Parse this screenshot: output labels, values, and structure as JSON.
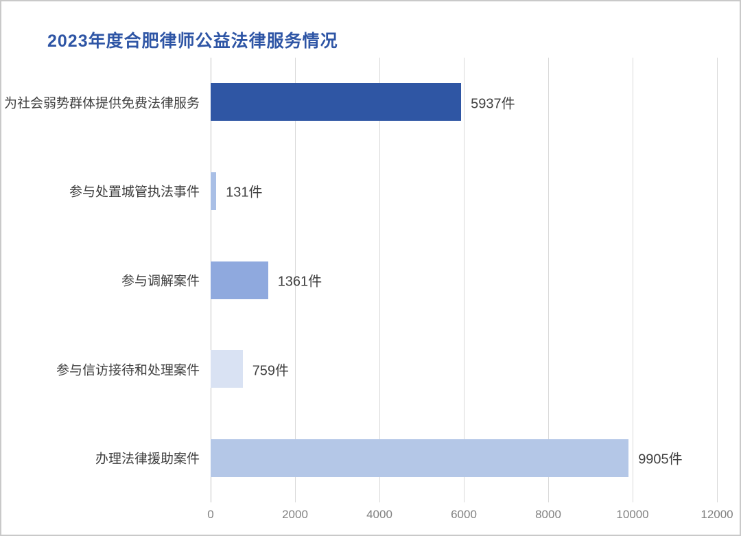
{
  "page": {
    "background": "#FFFFFF",
    "border_color": "#C9C9C9"
  },
  "chart_data": {
    "type": "bar",
    "orientation": "horizontal",
    "title": "2023年度合肥律师公益法律服务情况",
    "title_color": "#2E55A5",
    "categories": [
      "为社会弱势群体提供免费法律服务",
      "参与处置城管执法事件",
      "参与调解案件",
      "参与信访接待和处理案件",
      "办理法律援助案件"
    ],
    "values": [
      5937,
      131,
      1361,
      759,
      9905
    ],
    "value_labels": [
      "5937件",
      "131件",
      "1361件",
      "759件",
      "9905件"
    ],
    "unit": "件",
    "bar_colors": [
      "#2F56A4",
      "#A9BFE6",
      "#8FA9DE",
      "#D9E2F3",
      "#B4C7E7"
    ],
    "xlim": [
      0,
      12000
    ],
    "x_ticks": [
      0,
      2000,
      4000,
      6000,
      8000,
      10000,
      12000
    ],
    "x_tick_labels": [
      "0",
      "2000",
      "4000",
      "6000",
      "8000",
      "10000",
      "12000"
    ],
    "grid": "vertical",
    "grid_color": "#D9D9D9",
    "axis_label_color": "#808080",
    "label_color": "#3F3F3F",
    "legend": "none"
  }
}
